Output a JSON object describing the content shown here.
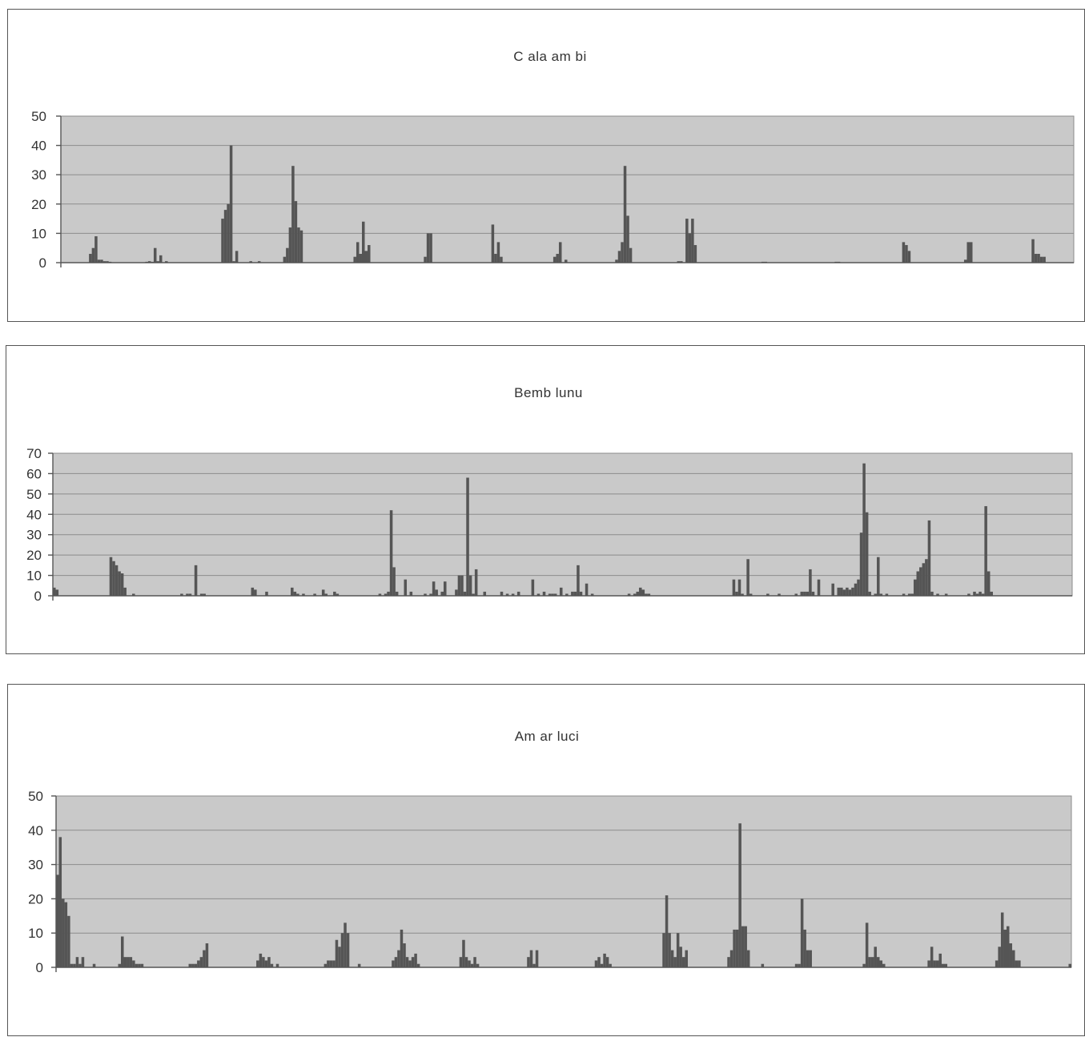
{
  "colors": {
    "plot_bg": "#c9c9c9",
    "grid": "#8c8c8c",
    "bar": "#555555",
    "axis": "#555555"
  },
  "chart_data": [
    {
      "type": "bar",
      "title": "C ala am bi",
      "ylim": [
        0,
        50
      ],
      "yticks": [
        "0",
        "10",
        "20",
        "30",
        "40",
        "50"
      ],
      "grid": true,
      "n": 360,
      "bars": [
        [
          10,
          3
        ],
        [
          11,
          5
        ],
        [
          12,
          9
        ],
        [
          13,
          1
        ],
        [
          14,
          1
        ],
        [
          15,
          0.5
        ],
        [
          16,
          0.5
        ],
        [
          17,
          0.3
        ],
        [
          30,
          0.3
        ],
        [
          31,
          0.5
        ],
        [
          32,
          0.3
        ],
        [
          33,
          5
        ],
        [
          34,
          0.5
        ],
        [
          35,
          2.5
        ],
        [
          37,
          0.5
        ],
        [
          57,
          15
        ],
        [
          58,
          18
        ],
        [
          59,
          20
        ],
        [
          60,
          40
        ],
        [
          61,
          0.5
        ],
        [
          62,
          4
        ],
        [
          67,
          0.5
        ],
        [
          70,
          0.5
        ],
        [
          79,
          2
        ],
        [
          80,
          5
        ],
        [
          81,
          12
        ],
        [
          82,
          33
        ],
        [
          83,
          21
        ],
        [
          84,
          12
        ],
        [
          85,
          11
        ],
        [
          104,
          2
        ],
        [
          105,
          7
        ],
        [
          106,
          3
        ],
        [
          107,
          14
        ],
        [
          108,
          4
        ],
        [
          109,
          6
        ],
        [
          129,
          2
        ],
        [
          130,
          10
        ],
        [
          131,
          10
        ],
        [
          153,
          13
        ],
        [
          154,
          3
        ],
        [
          155,
          7
        ],
        [
          156,
          2
        ],
        [
          175,
          2
        ],
        [
          176,
          3
        ],
        [
          177,
          7
        ],
        [
          179,
          1
        ],
        [
          197,
          1
        ],
        [
          198,
          4
        ],
        [
          199,
          7
        ],
        [
          200,
          33
        ],
        [
          201,
          16
        ],
        [
          202,
          5
        ],
        [
          219,
          0.5
        ],
        [
          220,
          0.5
        ],
        [
          222,
          15
        ],
        [
          223,
          10
        ],
        [
          224,
          15
        ],
        [
          225,
          6
        ],
        [
          249,
          0.3
        ],
        [
          250,
          0.3
        ],
        [
          275,
          0.3
        ],
        [
          276,
          0.3
        ],
        [
          299,
          7
        ],
        [
          300,
          6
        ],
        [
          301,
          4
        ],
        [
          321,
          1
        ],
        [
          322,
          7
        ],
        [
          323,
          7
        ],
        [
          345,
          8
        ],
        [
          346,
          3
        ],
        [
          347,
          3
        ],
        [
          348,
          2
        ],
        [
          349,
          2
        ]
      ]
    },
    {
      "type": "bar",
      "title": "Bemb lunu",
      "ylim": [
        0,
        70
      ],
      "yticks": [
        "0",
        "10",
        "20",
        "30",
        "40",
        "50",
        "60",
        "70"
      ],
      "grid": true,
      "n": 360,
      "bars": [
        [
          0,
          4
        ],
        [
          1,
          3
        ],
        [
          20,
          19
        ],
        [
          21,
          17
        ],
        [
          22,
          15
        ],
        [
          23,
          12
        ],
        [
          24,
          11
        ],
        [
          25,
          4
        ],
        [
          28,
          1
        ],
        [
          45,
          1
        ],
        [
          47,
          1
        ],
        [
          48,
          1
        ],
        [
          50,
          15
        ],
        [
          52,
          1
        ],
        [
          53,
          1
        ],
        [
          70,
          4
        ],
        [
          71,
          3
        ],
        [
          75,
          2
        ],
        [
          84,
          4
        ],
        [
          85,
          2
        ],
        [
          86,
          1
        ],
        [
          88,
          1
        ],
        [
          92,
          1
        ],
        [
          95,
          3
        ],
        [
          96,
          1
        ],
        [
          99,
          2
        ],
        [
          100,
          1
        ],
        [
          115,
          1
        ],
        [
          117,
          1
        ],
        [
          118,
          2
        ],
        [
          119,
          42
        ],
        [
          120,
          14
        ],
        [
          121,
          2
        ],
        [
          124,
          8
        ],
        [
          126,
          2
        ],
        [
          131,
          1
        ],
        [
          133,
          1
        ],
        [
          134,
          7
        ],
        [
          135,
          3
        ],
        [
          137,
          2
        ],
        [
          138,
          7
        ],
        [
          142,
          3
        ],
        [
          143,
          10
        ],
        [
          144,
          10
        ],
        [
          145,
          2
        ],
        [
          146,
          58
        ],
        [
          147,
          10
        ],
        [
          148,
          1
        ],
        [
          149,
          13
        ],
        [
          152,
          2
        ],
        [
          158,
          2
        ],
        [
          160,
          1
        ],
        [
          162,
          1
        ],
        [
          164,
          2
        ],
        [
          169,
          8
        ],
        [
          171,
          1
        ],
        [
          173,
          2
        ],
        [
          175,
          1
        ],
        [
          176,
          1
        ],
        [
          177,
          1
        ],
        [
          179,
          4
        ],
        [
          181,
          1
        ],
        [
          183,
          2
        ],
        [
          184,
          2
        ],
        [
          185,
          15
        ],
        [
          186,
          2
        ],
        [
          188,
          6
        ],
        [
          190,
          1
        ],
        [
          203,
          1
        ],
        [
          205,
          1
        ],
        [
          206,
          2
        ],
        [
          207,
          4
        ],
        [
          208,
          3
        ],
        [
          209,
          1
        ],
        [
          210,
          1
        ],
        [
          240,
          8
        ],
        [
          241,
          2
        ],
        [
          242,
          8
        ],
        [
          243,
          1
        ],
        [
          245,
          18
        ],
        [
          246,
          1
        ],
        [
          252,
          1
        ],
        [
          256,
          1
        ],
        [
          262,
          1
        ],
        [
          264,
          2
        ],
        [
          265,
          2
        ],
        [
          266,
          2
        ],
        [
          267,
          13
        ],
        [
          268,
          2
        ],
        [
          270,
          8
        ],
        [
          275,
          6
        ],
        [
          277,
          4
        ],
        [
          278,
          4
        ],
        [
          279,
          3
        ],
        [
          280,
          4
        ],
        [
          281,
          3
        ],
        [
          282,
          4
        ],
        [
          283,
          6
        ],
        [
          284,
          8
        ],
        [
          285,
          31
        ],
        [
          286,
          65
        ],
        [
          287,
          41
        ],
        [
          288,
          2
        ],
        [
          290,
          1
        ],
        [
          291,
          19
        ],
        [
          292,
          1
        ],
        [
          294,
          1
        ],
        [
          300,
          1
        ],
        [
          302,
          1
        ],
        [
          303,
          1
        ],
        [
          304,
          8
        ],
        [
          305,
          12
        ],
        [
          306,
          14
        ],
        [
          307,
          16
        ],
        [
          308,
          18
        ],
        [
          309,
          37
        ],
        [
          310,
          2
        ],
        [
          312,
          1
        ],
        [
          315,
          1
        ],
        [
          323,
          1
        ],
        [
          325,
          2
        ],
        [
          326,
          1
        ],
        [
          327,
          2
        ],
        [
          328,
          1
        ],
        [
          329,
          44
        ],
        [
          330,
          12
        ],
        [
          331,
          2
        ]
      ]
    },
    {
      "type": "bar",
      "title": "Am ar luci",
      "ylim": [
        0,
        50
      ],
      "yticks": [
        "0",
        "10",
        "20",
        "30",
        "40",
        "50"
      ],
      "grid": true,
      "n": 360,
      "bars": [
        [
          0,
          27
        ],
        [
          1,
          38
        ],
        [
          2,
          20
        ],
        [
          3,
          19
        ],
        [
          4,
          15
        ],
        [
          5,
          1
        ],
        [
          6,
          1
        ],
        [
          7,
          3
        ],
        [
          8,
          1
        ],
        [
          9,
          3
        ],
        [
          13,
          1
        ],
        [
          22,
          1
        ],
        [
          23,
          9
        ],
        [
          24,
          3
        ],
        [
          25,
          3
        ],
        [
          26,
          3
        ],
        [
          27,
          2
        ],
        [
          28,
          1
        ],
        [
          29,
          1
        ],
        [
          30,
          1
        ],
        [
          47,
          1
        ],
        [
          48,
          1
        ],
        [
          49,
          1
        ],
        [
          50,
          2
        ],
        [
          51,
          3
        ],
        [
          52,
          5
        ],
        [
          53,
          7
        ],
        [
          71,
          2
        ],
        [
          72,
          4
        ],
        [
          73,
          3
        ],
        [
          74,
          2
        ],
        [
          75,
          3
        ],
        [
          76,
          1
        ],
        [
          78,
          1
        ],
        [
          95,
          1
        ],
        [
          96,
          2
        ],
        [
          97,
          2
        ],
        [
          98,
          2
        ],
        [
          99,
          8
        ],
        [
          100,
          6
        ],
        [
          101,
          10
        ],
        [
          102,
          13
        ],
        [
          103,
          10
        ],
        [
          107,
          1
        ],
        [
          119,
          2
        ],
        [
          120,
          3
        ],
        [
          121,
          5
        ],
        [
          122,
          11
        ],
        [
          123,
          7
        ],
        [
          124,
          3
        ],
        [
          125,
          2
        ],
        [
          126,
          3
        ],
        [
          127,
          4
        ],
        [
          128,
          1
        ],
        [
          143,
          3
        ],
        [
          144,
          8
        ],
        [
          145,
          3
        ],
        [
          146,
          2
        ],
        [
          147,
          1
        ],
        [
          148,
          3
        ],
        [
          149,
          1
        ],
        [
          167,
          3
        ],
        [
          168,
          5
        ],
        [
          169,
          1
        ],
        [
          170,
          5
        ],
        [
          191,
          2
        ],
        [
          192,
          3
        ],
        [
          193,
          1
        ],
        [
          194,
          4
        ],
        [
          195,
          3
        ],
        [
          196,
          1
        ],
        [
          215,
          10
        ],
        [
          216,
          21
        ],
        [
          217,
          10
        ],
        [
          218,
          5
        ],
        [
          219,
          3
        ],
        [
          220,
          10
        ],
        [
          221,
          6
        ],
        [
          222,
          3
        ],
        [
          223,
          5
        ],
        [
          238,
          3
        ],
        [
          239,
          5
        ],
        [
          240,
          11
        ],
        [
          241,
          11
        ],
        [
          242,
          42
        ],
        [
          243,
          12
        ],
        [
          244,
          12
        ],
        [
          245,
          5
        ],
        [
          250,
          1
        ],
        [
          262,
          1
        ],
        [
          263,
          1
        ],
        [
          264,
          20
        ],
        [
          265,
          11
        ],
        [
          266,
          5
        ],
        [
          267,
          5
        ],
        [
          286,
          1
        ],
        [
          287,
          13
        ],
        [
          288,
          3
        ],
        [
          289,
          3
        ],
        [
          290,
          6
        ],
        [
          291,
          3
        ],
        [
          292,
          2
        ],
        [
          293,
          1
        ],
        [
          309,
          2
        ],
        [
          310,
          6
        ],
        [
          311,
          2
        ],
        [
          312,
          2
        ],
        [
          313,
          4
        ],
        [
          314,
          1
        ],
        [
          315,
          1
        ],
        [
          333,
          2
        ],
        [
          334,
          6
        ],
        [
          335,
          16
        ],
        [
          336,
          11
        ],
        [
          337,
          12
        ],
        [
          338,
          7
        ],
        [
          339,
          5
        ],
        [
          340,
          2
        ],
        [
          341,
          2
        ],
        [
          359,
          1
        ]
      ]
    }
  ]
}
